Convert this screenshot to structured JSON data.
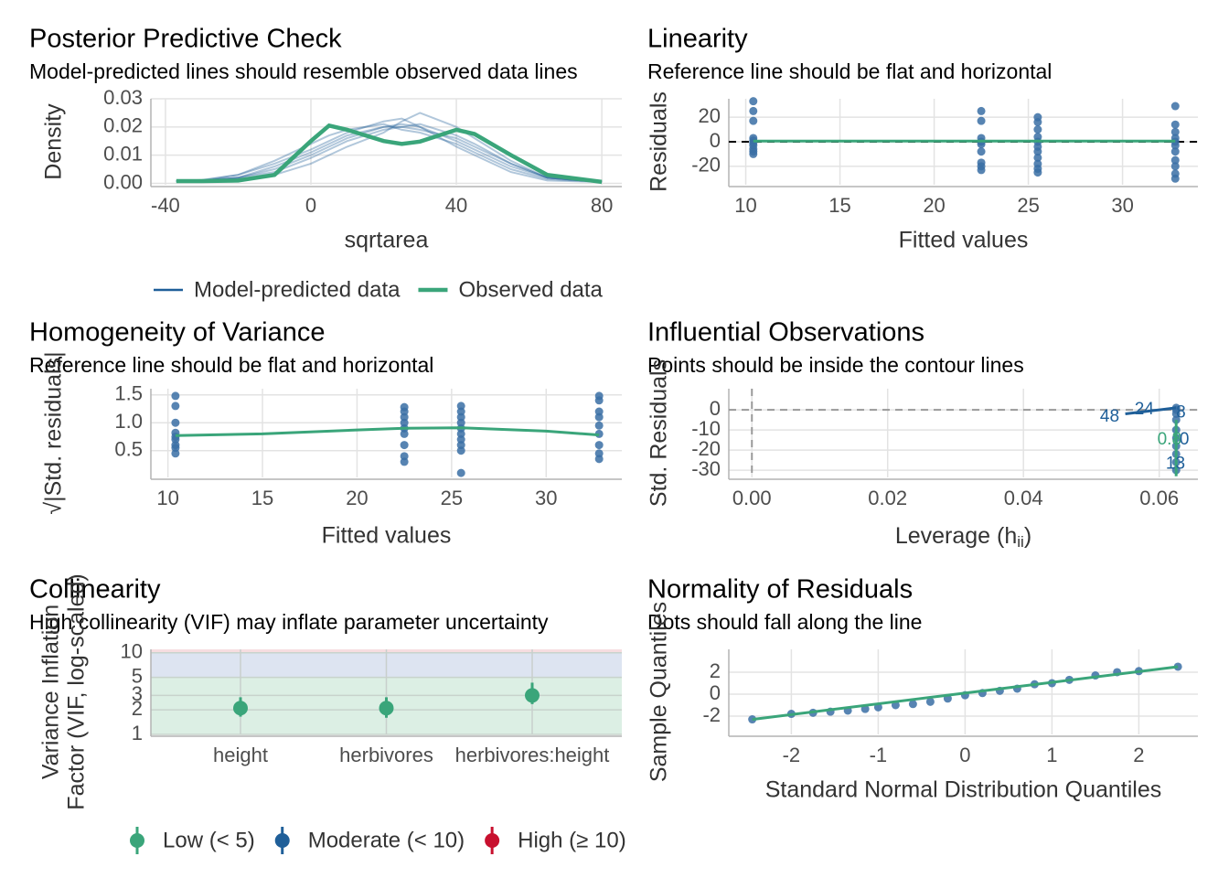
{
  "chart_data": [
    {
      "type": "line",
      "title": "Posterior Predictive Check",
      "subtitle": "Model-predicted lines should resemble observed data lines",
      "x_label": "sqrtarea",
      "y_label": "Density",
      "grid": true,
      "xlim": [
        -44,
        85.5
      ],
      "ylim": [
        -0.0005,
        0.03
      ],
      "xticks": [
        -40,
        0,
        40,
        80
      ],
      "yticks": [
        {
          "value": 0,
          "label": "0.00"
        },
        0.01,
        0.02,
        0.03
      ],
      "x": [
        -37,
        -30,
        -20,
        -10,
        0,
        5,
        10,
        20,
        25,
        30,
        40,
        45,
        55,
        65,
        80
      ],
      "series": [
        {
          "name": "Model-predicted data",
          "color": "#1f5f99",
          "values": [
            [
              0.0008,
              0.001,
              0.002,
              0.005,
              0.01,
              0.013,
              0.016,
              0.02,
              0.021,
              0.02,
              0.015,
              0.012,
              0.006,
              0.002,
              0.0005
            ],
            [
              0.0008,
              0.001,
              0.003,
              0.007,
              0.012,
              0.015,
              0.018,
              0.022,
              0.023,
              0.02,
              0.013,
              0.01,
              0.004,
              0.001,
              0.0005
            ],
            [
              0.0008,
              0.001,
              0.002,
              0.004,
              0.009,
              0.012,
              0.015,
              0.019,
              0.02,
              0.021,
              0.017,
              0.014,
              0.007,
              0.002,
              0.0005
            ],
            [
              0.0008,
              0.0012,
              0.003,
              0.008,
              0.014,
              0.017,
              0.019,
              0.021,
              0.019,
              0.018,
              0.014,
              0.011,
              0.005,
              0.0015,
              0.0005
            ],
            [
              0.0008,
              0.001,
              0.0015,
              0.003,
              0.007,
              0.01,
              0.013,
              0.018,
              0.022,
              0.025,
              0.02,
              0.016,
              0.008,
              0.002,
              0.0005
            ],
            [
              0.0008,
              0.001,
              0.002,
              0.006,
              0.011,
              0.014,
              0.017,
              0.02,
              0.02,
              0.019,
              0.016,
              0.013,
              0.007,
              0.002,
              0.0005
            ]
          ]
        },
        {
          "name": "Observed data",
          "color": "#3aa57a",
          "values": [
            0.0008,
            0.0008,
            0.001,
            0.003,
            0.015,
            0.0205,
            0.019,
            0.015,
            0.014,
            0.0148,
            0.019,
            0.0175,
            0.01,
            0.003,
            0.0005
          ]
        }
      ]
    },
    {
      "type": "scatter",
      "title": "Linearity",
      "subtitle": "Reference line should be flat and horizontal",
      "x_label": "Fitted values",
      "y_label": "Residuals",
      "grid": true,
      "color": "#3a6ea5",
      "xlim": [
        9.1,
        34
      ],
      "ylim": [
        -35,
        35
      ],
      "xticks": [
        10,
        15,
        20,
        25,
        30
      ],
      "yticks": [
        20,
        0,
        -20
      ],
      "x": [
        10.4,
        10.4,
        10.4,
        10.4,
        10.4,
        10.4,
        10.4,
        10.4,
        10.4,
        10.4,
        22.5,
        22.5,
        22.5,
        22.5,
        22.5,
        22.5,
        22.5,
        22.5,
        22.5,
        25.5,
        25.5,
        25.5,
        25.5,
        25.5,
        25.5,
        25.5,
        25.5,
        25.5,
        25.5,
        25.5,
        32.8,
        32.8,
        32.8,
        32.8,
        32.8,
        32.8,
        32.8,
        32.8,
        32.8,
        32.8,
        32.8
      ],
      "y": [
        33,
        25,
        17,
        3,
        1,
        -1,
        -3,
        -6,
        -8,
        -10,
        25,
        17,
        3,
        0,
        -2,
        -8,
        -17,
        -20,
        -23,
        20,
        16,
        10,
        4,
        0,
        -4,
        -8,
        -13,
        -18,
        -22,
        -25,
        29,
        14,
        8,
        3,
        0,
        -3,
        -8,
        -15,
        -20,
        -26,
        -30
      ],
      "hline": 0,
      "lines": [
        {
          "color": "#3aa57a",
          "x": [
            10.4,
            32.8
          ],
          "y": [
            0.5,
            0.5
          ]
        }
      ]
    },
    {
      "type": "scatter",
      "title": "Homogeneity of Variance",
      "subtitle": "Reference line should be flat and horizontal",
      "x_label": "Fitted values",
      "y_label": "√|Std. residuals|",
      "grid": true,
      "color": "#3a6ea5",
      "xlim": [
        9.1,
        34
      ],
      "ylim": [
        0.02,
        1.61
      ],
      "xticks": [
        10,
        15,
        20,
        25,
        30
      ],
      "yticks": [
        0.5,
        {
          "value": 1,
          "label": "1.0"
        },
        1.5
      ],
      "x": [
        10.4,
        10.4,
        10.4,
        10.4,
        10.4,
        10.4,
        10.4,
        10.4,
        10.4,
        22.5,
        22.5,
        22.5,
        22.5,
        22.5,
        22.5,
        22.5,
        22.5,
        22.5,
        25.5,
        25.5,
        25.5,
        25.5,
        25.5,
        25.5,
        25.5,
        25.5,
        25.5,
        25.5,
        32.8,
        32.8,
        32.8,
        32.8,
        32.8,
        32.8,
        32.8,
        32.8,
        32.8
      ],
      "y": [
        1.48,
        1.3,
        1.0,
        0.82,
        0.75,
        0.7,
        0.6,
        0.55,
        0.45,
        1.28,
        1.2,
        1.1,
        1.0,
        0.9,
        0.8,
        0.6,
        0.4,
        0.3,
        1.3,
        1.2,
        1.1,
        1.0,
        0.9,
        0.8,
        0.7,
        0.6,
        0.5,
        0.1,
        1.48,
        1.4,
        1.2,
        1.1,
        0.95,
        0.8,
        0.6,
        0.45,
        0.35
      ],
      "lines": [
        {
          "color": "#3aa57a",
          "x": [
            10.4,
            15,
            20,
            22.5,
            25.5,
            30,
            32.8
          ],
          "y": [
            0.77,
            0.8,
            0.87,
            0.9,
            0.91,
            0.85,
            0.78
          ]
        }
      ]
    },
    {
      "type": "scatter",
      "title": "Influential Observations",
      "subtitle": "Points should be inside the contour lines",
      "x_label": [
        "Leverage (h",
        "ii",
        ")"
      ],
      "y_label": "Std. Residuals",
      "grid": true,
      "color": "#3a6ea5",
      "xlim": [
        -0.0034,
        0.0657
      ],
      "ylim": [
        -33.6,
        10.5
      ],
      "xticks": [
        {
          "value": 0,
          "label": "0.00"
        },
        0.02,
        0.04,
        0.06
      ],
      "yticks": [
        0,
        -10,
        -20,
        -30
      ],
      "x": [
        0.0625,
        0.0625,
        0.0625,
        0.0625,
        0.0625,
        0.0625,
        0.0625,
        0.0625,
        0.0625,
        0.0625
      ],
      "y": [
        1,
        0,
        -2,
        -5,
        -10,
        -14,
        -18,
        -22,
        -26,
        -30
      ],
      "hline": 0,
      "vline": 0,
      "lines": [
        {
          "color": "#1f5f99",
          "x": [
            0.055,
            0.0625
          ],
          "y": [
            -2,
            1
          ]
        },
        {
          "color": "#3aa57a",
          "x": [
            0.0625,
            0.0625
          ],
          "y": [
            -5,
            -33
          ]
        }
      ],
      "annotations": [
        {
          "text": "48",
          "x": 0.0527,
          "y": -3.5,
          "color": "#1f5f99"
        },
        {
          "text": "24",
          "x": 0.0578,
          "y": 0,
          "color": "#1f5f99"
        },
        {
          "text": "8",
          "x": 0.0632,
          "y": -1.5,
          "color": "#1f5f99"
        },
        {
          "text": "0.8",
          "x": 0.0615,
          "y": -15,
          "color": "#3aa57a"
        },
        {
          "text": "0",
          "x": 0.0637,
          "y": -15,
          "color": "#1f5f99"
        },
        {
          "text": "13",
          "x": 0.0624,
          "y": -27,
          "color": "#1f5f99"
        }
      ]
    },
    {
      "type": "pointrange",
      "title": "Collinearity",
      "subtitle": "High collinearity (VIF) may inflate parameter uncertainty",
      "y_label": [
        "Variance Inflation",
        "Factor (VIF, log-scaled)"
      ],
      "grid": true,
      "log_y": true,
      "ylim": [
        1,
        11
      ],
      "yticks": [
        1,
        2,
        3,
        5,
        10
      ],
      "categories": [
        "height",
        "herbivores",
        "herbivores:height"
      ],
      "values": [
        2.1,
        2.1,
        3.0
      ],
      "ci_low": [
        1.65,
        1.6,
        2.35
      ],
      "ci_high": [
        2.85,
        2.85,
        4.3
      ],
      "colors": [
        "#3aa57a",
        "#3aa57a",
        "#3aa57a"
      ],
      "bands": [
        {
          "from": 1,
          "to": 5,
          "color": "#dcefe4"
        },
        {
          "from": 5,
          "to": 10,
          "color": "#dde4f1"
        },
        {
          "from": 10,
          "to": 11,
          "color": "#f6dde0"
        }
      ],
      "series": [
        {
          "name": "Low (< 5)",
          "color": "#3aa57a"
        },
        {
          "name": "Moderate (< 10)",
          "color": "#1f5f99"
        },
        {
          "name": "High (≥ 10)",
          "color": "#c8102e"
        }
      ]
    },
    {
      "type": "scatter",
      "title": "Normality of Residuals",
      "subtitle": "Dots should fall along the line",
      "x_label": "Standard Normal Distribution Quantiles",
      "y_label": "Sample Quantiles",
      "grid": true,
      "color": "#3a6ea5",
      "xlim": [
        -2.72,
        2.68
      ],
      "ylim": [
        -3.67,
        4.08
      ],
      "xticks": [
        -2,
        -1,
        0,
        1,
        2
      ],
      "yticks": [
        2,
        0,
        -2
      ],
      "x": [
        -2.45,
        -2.0,
        -1.75,
        -1.55,
        -1.35,
        -1.15,
        -1.0,
        -0.8,
        -0.6,
        -0.4,
        -0.2,
        0,
        0.2,
        0.4,
        0.6,
        0.8,
        1.0,
        1.2,
        1.5,
        1.75,
        2.0,
        2.45
      ],
      "y": [
        -2.3,
        -1.8,
        -1.7,
        -1.6,
        -1.5,
        -1.35,
        -1.2,
        -1.0,
        -0.9,
        -0.7,
        -0.4,
        -0.1,
        0.1,
        0.3,
        0.5,
        0.9,
        1.0,
        1.3,
        1.7,
        2.0,
        2.1,
        2.5
      ],
      "lines": [
        {
          "color": "#3aa57a",
          "x": [
            -2.45,
            2.45
          ],
          "y": [
            -2.3,
            2.5
          ]
        }
      ]
    }
  ]
}
